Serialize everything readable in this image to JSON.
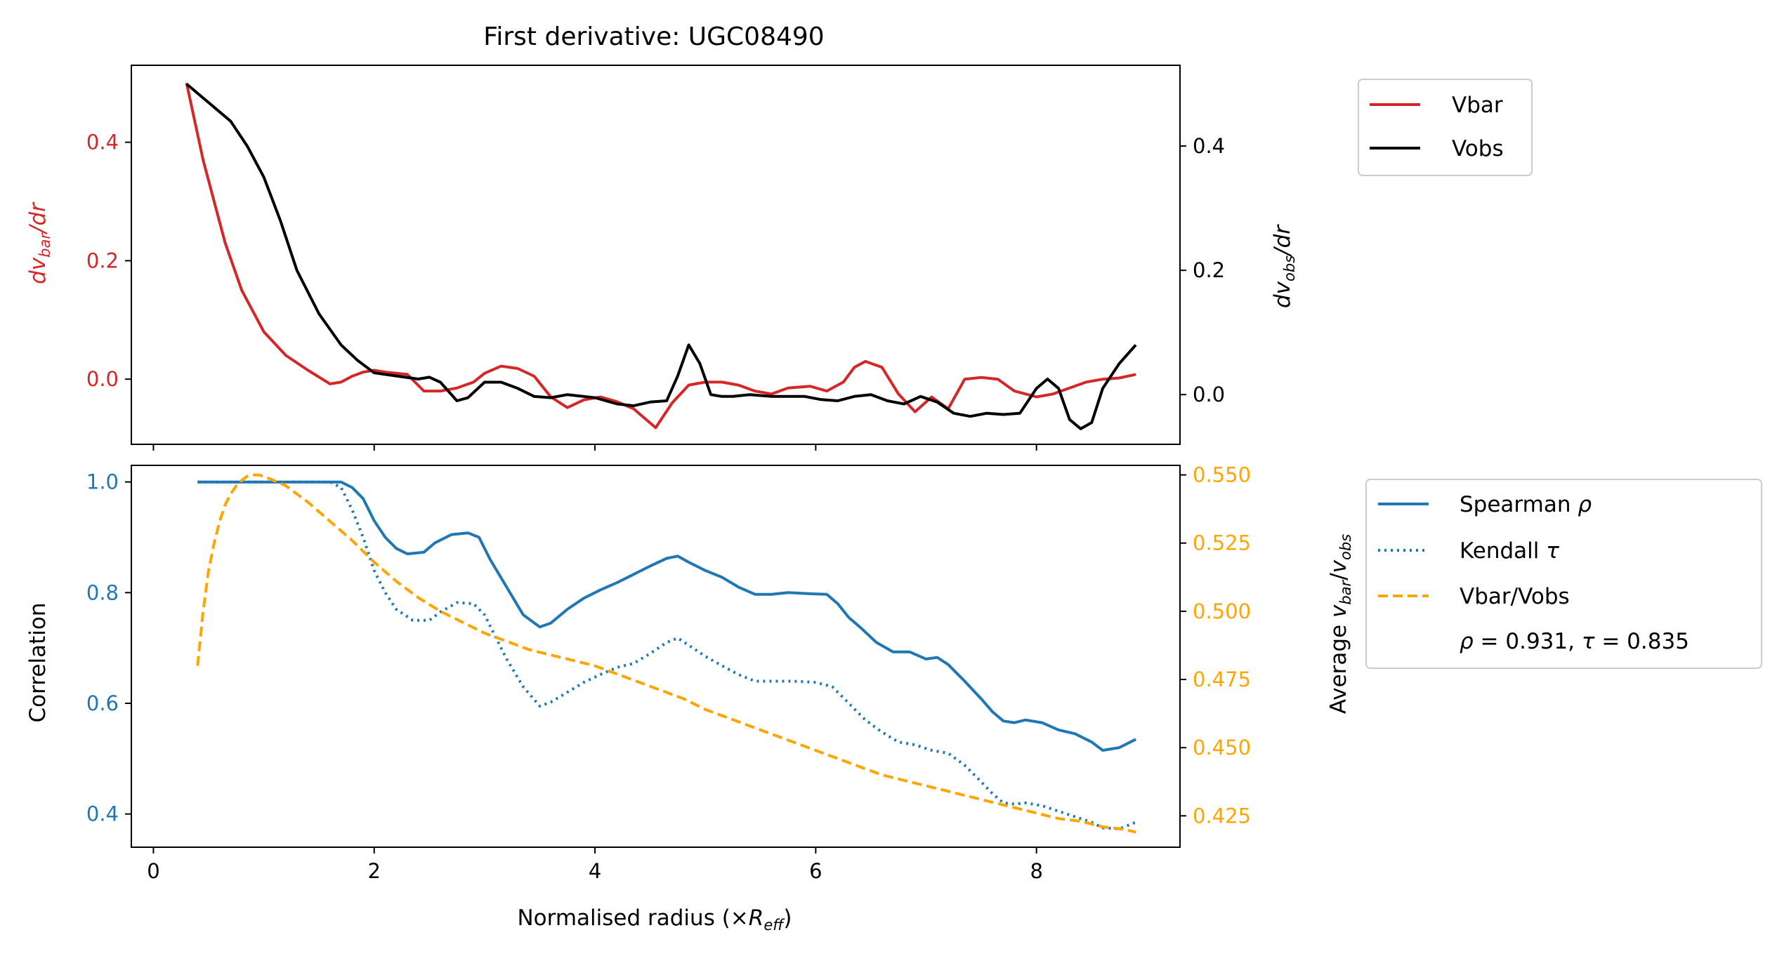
{
  "chart_data": [
    {
      "type": "line",
      "title": "First derivative: UGC08490",
      "xlim": [
        -0.2,
        9.3
      ],
      "ylabel_left": "dv_bar/dr",
      "ylabel_left_parts": {
        "base": "dv",
        "sub": "bar",
        "tail": "/dr"
      },
      "ylabel_right": "dv_obs/dr",
      "ylabel_right_parts": {
        "base": "dv",
        "sub": "obs",
        "tail": "/dr"
      },
      "ylim_left": [
        -0.11,
        0.53
      ],
      "ylim_right": [
        -0.08,
        0.53
      ],
      "yticks_left": [
        0.0,
        0.2,
        0.4
      ],
      "yticks_left_labels": [
        "0.0",
        "0.2",
        "0.4"
      ],
      "yticks_right": [
        0.0,
        0.2,
        0.4
      ],
      "yticks_right_labels": [
        "0.0",
        "0.2",
        "0.4"
      ],
      "legend_position": "outside-right-top",
      "series": [
        {
          "name": "Vbar",
          "axis": "left",
          "color": "#d62728",
          "style": "solid",
          "x": [
            0.3,
            0.45,
            0.55,
            0.65,
            0.8,
            1.0,
            1.2,
            1.4,
            1.6,
            1.7,
            1.8,
            1.9,
            2.0,
            2.1,
            2.3,
            2.45,
            2.6,
            2.75,
            2.9,
            3.0,
            3.15,
            3.3,
            3.45,
            3.6,
            3.75,
            3.9,
            4.05,
            4.2,
            4.35,
            4.55,
            4.7,
            4.85,
            5.0,
            5.15,
            5.3,
            5.45,
            5.6,
            5.75,
            5.95,
            6.1,
            6.25,
            6.35,
            6.45,
            6.6,
            6.75,
            6.9,
            7.05,
            7.2,
            7.35,
            7.5,
            7.65,
            7.8,
            8.0,
            8.15,
            8.3,
            8.45,
            8.6,
            8.75,
            8.9
          ],
          "y": [
            0.5,
            0.37,
            0.3,
            0.23,
            0.15,
            0.08,
            0.04,
            0.015,
            -0.008,
            -0.005,
            0.005,
            0.012,
            0.015,
            0.012,
            0.008,
            -0.02,
            -0.02,
            -0.015,
            -0.005,
            0.01,
            0.022,
            0.018,
            0.005,
            -0.03,
            -0.048,
            -0.035,
            -0.03,
            -0.038,
            -0.05,
            -0.082,
            -0.04,
            -0.01,
            -0.005,
            -0.005,
            -0.01,
            -0.02,
            -0.025,
            -0.015,
            -0.012,
            -0.02,
            -0.005,
            0.02,
            0.03,
            0.02,
            -0.025,
            -0.055,
            -0.03,
            -0.05,
            0.0,
            0.003,
            0.0,
            -0.02,
            -0.03,
            -0.025,
            -0.015,
            -0.005,
            0.0,
            0.002,
            0.008
          ]
        },
        {
          "name": "Vobs",
          "axis": "right",
          "color": "#000000",
          "style": "solid",
          "x": [
            0.3,
            0.5,
            0.7,
            0.85,
            1.0,
            1.15,
            1.3,
            1.5,
            1.7,
            1.85,
            2.0,
            2.2,
            2.4,
            2.5,
            2.6,
            2.75,
            2.85,
            3.0,
            3.15,
            3.3,
            3.45,
            3.6,
            3.75,
            4.0,
            4.2,
            4.35,
            4.5,
            4.65,
            4.75,
            4.85,
            4.95,
            5.05,
            5.15,
            5.25,
            5.4,
            5.6,
            5.75,
            5.9,
            6.05,
            6.2,
            6.35,
            6.5,
            6.65,
            6.8,
            6.95,
            7.1,
            7.25,
            7.4,
            7.55,
            7.7,
            7.85,
            8.0,
            8.1,
            8.2,
            8.3,
            8.4,
            8.5,
            8.6,
            8.75,
            8.9
          ],
          "y": [
            0.5,
            0.47,
            0.44,
            0.4,
            0.35,
            0.28,
            0.2,
            0.13,
            0.08,
            0.055,
            0.035,
            0.03,
            0.025,
            0.028,
            0.02,
            -0.01,
            -0.005,
            0.02,
            0.02,
            0.01,
            -0.003,
            -0.005,
            0.0,
            -0.005,
            -0.015,
            -0.018,
            -0.012,
            -0.01,
            0.03,
            0.08,
            0.05,
            0.0,
            -0.003,
            -0.003,
            0.0,
            -0.003,
            -0.003,
            -0.003,
            -0.008,
            -0.01,
            -0.003,
            0.0,
            -0.01,
            -0.015,
            -0.003,
            -0.012,
            -0.03,
            -0.035,
            -0.03,
            -0.032,
            -0.03,
            0.01,
            0.025,
            0.01,
            -0.04,
            -0.055,
            -0.045,
            0.01,
            0.05,
            0.08
          ]
        }
      ]
    },
    {
      "type": "line",
      "title": "",
      "xlabel": "Normalised radius (×R_eff)",
      "xlabel_parts": {
        "pre": "Normalised radius (×",
        "base": "R",
        "sub": "eff",
        "post": ")"
      },
      "xlim": [
        -0.2,
        9.3
      ],
      "xticks": [
        0,
        2,
        4,
        6,
        8
      ],
      "xtick_labels": [
        "0",
        "2",
        "4",
        "6",
        "8"
      ],
      "ylabel_left": "Correlation",
      "ylabel_right": "Average v_bar/v_obs",
      "ylabel_right_parts": {
        "pre": "Average ",
        "v1": "v",
        "sub1": "bar",
        "slash": "/",
        "v2": "v",
        "sub2": "obs"
      },
      "ylim_left": [
        0.34,
        1.03
      ],
      "ylim_right": [
        0.4135,
        0.5535
      ],
      "yticks_left": [
        0.4,
        0.6,
        0.8,
        1.0
      ],
      "yticks_left_labels": [
        "0.4",
        "0.6",
        "0.8",
        "1.0"
      ],
      "yticks_right": [
        0.425,
        0.45,
        0.475,
        0.5,
        0.525,
        0.55
      ],
      "yticks_right_labels": [
        "0.425",
        "0.450",
        "0.475",
        "0.500",
        "0.525",
        "0.550"
      ],
      "left_axis_color": "#1f77b4",
      "right_axis_color": "#ffa500",
      "legend_position": "outside-right-top",
      "annotation": "ρ = 0.931, τ = 0.835",
      "annotation_parts": {
        "rho": "ρ",
        "rho_val": " = 0.931, ",
        "tau": "τ",
        "tau_val": " = 0.835"
      },
      "series": [
        {
          "name": "Spearman ρ",
          "legend_parts": {
            "base": "Spearman ",
            "sym": "ρ"
          },
          "axis": "left",
          "color": "#1f77b4",
          "style": "solid",
          "x": [
            0.4,
            0.8,
            1.2,
            1.6,
            1.7,
            1.8,
            1.9,
            2.0,
            2.1,
            2.2,
            2.3,
            2.45,
            2.55,
            2.7,
            2.85,
            2.95,
            3.05,
            3.2,
            3.35,
            3.5,
            3.6,
            3.75,
            3.9,
            4.05,
            4.2,
            4.35,
            4.5,
            4.65,
            4.75,
            4.85,
            5.0,
            5.15,
            5.3,
            5.45,
            5.6,
            5.75,
            5.95,
            6.1,
            6.2,
            6.3,
            6.4,
            6.55,
            6.7,
            6.85,
            7.0,
            7.1,
            7.2,
            7.35,
            7.5,
            7.6,
            7.7,
            7.8,
            7.9,
            8.05,
            8.2,
            8.35,
            8.5,
            8.6,
            8.75,
            8.9
          ],
          "y": [
            1.0,
            1.0,
            1.0,
            1.0,
            1.0,
            0.99,
            0.97,
            0.93,
            0.9,
            0.88,
            0.87,
            0.873,
            0.89,
            0.905,
            0.908,
            0.9,
            0.86,
            0.81,
            0.76,
            0.738,
            0.745,
            0.77,
            0.79,
            0.805,
            0.818,
            0.833,
            0.848,
            0.862,
            0.866,
            0.855,
            0.84,
            0.828,
            0.81,
            0.797,
            0.797,
            0.8,
            0.798,
            0.797,
            0.78,
            0.755,
            0.738,
            0.71,
            0.693,
            0.693,
            0.68,
            0.683,
            0.67,
            0.64,
            0.608,
            0.585,
            0.568,
            0.565,
            0.57,
            0.565,
            0.552,
            0.545,
            0.53,
            0.515,
            0.52,
            0.535
          ]
        },
        {
          "name": "Kendall τ",
          "legend_parts": {
            "base": "Kendall ",
            "sym": "τ"
          },
          "axis": "left",
          "color": "#1f77b4",
          "style": "dotted",
          "x": [
            0.4,
            0.8,
            1.2,
            1.6,
            1.7,
            1.8,
            1.9,
            2.0,
            2.1,
            2.2,
            2.35,
            2.5,
            2.6,
            2.75,
            2.9,
            3.0,
            3.1,
            3.2,
            3.35,
            3.5,
            3.6,
            3.75,
            3.9,
            4.05,
            4.2,
            4.35,
            4.5,
            4.65,
            4.75,
            4.85,
            5.0,
            5.15,
            5.3,
            5.45,
            5.6,
            5.8,
            6.0,
            6.15,
            6.3,
            6.45,
            6.6,
            6.75,
            6.9,
            7.05,
            7.2,
            7.35,
            7.5,
            7.6,
            7.7,
            7.8,
            7.9,
            8.05,
            8.2,
            8.35,
            8.5,
            8.6,
            8.75,
            8.9
          ],
          "y": [
            1.0,
            1.0,
            1.0,
            1.0,
            0.99,
            0.95,
            0.9,
            0.84,
            0.8,
            0.77,
            0.75,
            0.75,
            0.765,
            0.782,
            0.78,
            0.76,
            0.72,
            0.68,
            0.63,
            0.595,
            0.602,
            0.62,
            0.638,
            0.652,
            0.665,
            0.672,
            0.69,
            0.71,
            0.718,
            0.705,
            0.685,
            0.668,
            0.652,
            0.64,
            0.64,
            0.64,
            0.638,
            0.63,
            0.6,
            0.57,
            0.548,
            0.53,
            0.525,
            0.515,
            0.51,
            0.488,
            0.458,
            0.437,
            0.42,
            0.418,
            0.42,
            0.415,
            0.405,
            0.395,
            0.385,
            0.375,
            0.373,
            0.385
          ]
        },
        {
          "name": "Vbar/Vobs",
          "axis": "right",
          "color": "#ffa500",
          "style": "dashed",
          "x": [
            0.4,
            0.45,
            0.5,
            0.55,
            0.6,
            0.65,
            0.7,
            0.75,
            0.8,
            0.85,
            0.9,
            0.95,
            1.0,
            1.2,
            1.4,
            1.6,
            1.8,
            2.0,
            2.2,
            2.4,
            2.6,
            2.8,
            3.0,
            3.2,
            3.4,
            3.6,
            3.8,
            4.0,
            4.2,
            4.4,
            4.6,
            4.8,
            5.0,
            5.2,
            5.4,
            5.6,
            5.8,
            6.0,
            6.2,
            6.4,
            6.6,
            6.8,
            7.0,
            7.2,
            7.4,
            7.6,
            7.8,
            8.0,
            8.2,
            8.4,
            8.6,
            8.8,
            8.9
          ],
          "y": [
            0.48,
            0.5,
            0.515,
            0.525,
            0.533,
            0.539,
            0.543,
            0.546,
            0.548,
            0.5495,
            0.55,
            0.55,
            0.5495,
            0.546,
            0.54,
            0.533,
            0.526,
            0.518,
            0.511,
            0.505,
            0.5,
            0.496,
            0.492,
            0.489,
            0.486,
            0.484,
            0.482,
            0.48,
            0.477,
            0.474,
            0.471,
            0.468,
            0.464,
            0.461,
            0.458,
            0.455,
            0.452,
            0.449,
            0.446,
            0.443,
            0.44,
            0.438,
            0.436,
            0.434,
            0.432,
            0.43,
            0.428,
            0.426,
            0.424,
            0.423,
            0.421,
            0.42,
            0.419
          ]
        }
      ]
    }
  ]
}
